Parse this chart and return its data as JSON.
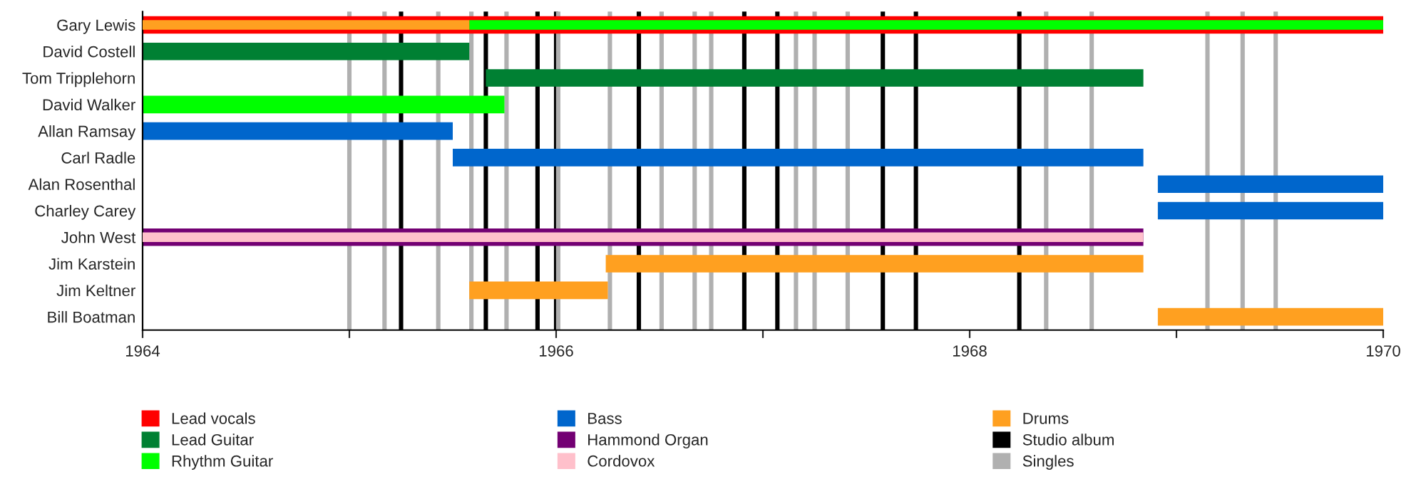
{
  "chart_data": {
    "type": "bar",
    "orientation": "horizontal",
    "legend": "bottom",
    "categories": [
      "Gary Lewis",
      "David Costell",
      "Tom Tripplehorn",
      "David Walker",
      "Allan Ramsay",
      "Carl Radle",
      "Alan Rosenthal",
      "Charley Carey",
      "John West",
      "Jim Karstein",
      "Jim Keltner",
      "Bill Boatman"
    ],
    "xlim": [
      1964,
      1970
    ],
    "xticks": [
      1964,
      {
        "value": 1965,
        "label": null
      },
      1966,
      {
        "value": 1967,
        "label": null
      },
      1968,
      {
        "value": 1969,
        "label": null
      },
      1970
    ],
    "series": [
      {
        "name": "Lead vocals",
        "color": "#ff0000",
        "base": [
          1964,
          null,
          null,
          null,
          null,
          null,
          null,
          null,
          null,
          null,
          null,
          null
        ],
        "values": [
          6,
          null,
          null,
          null,
          null,
          null,
          null,
          null,
          null,
          null,
          null,
          null
        ]
      },
      {
        "name": "Lead Guitar",
        "color": "#008033",
        "base": [
          null,
          1964,
          1965.66,
          null,
          null,
          null,
          null,
          null,
          null,
          null,
          null,
          null
        ],
        "values": [
          null,
          1.58,
          3.18,
          null,
          null,
          null,
          null,
          null,
          null,
          null,
          null,
          null
        ]
      },
      {
        "name": "Rhythm Guitar",
        "color": "#00ff00",
        "base": [
          1965.58,
          null,
          null,
          1964,
          null,
          null,
          null,
          null,
          null,
          null,
          null,
          null
        ],
        "values": [
          4.42,
          null,
          null,
          1.75,
          null,
          null,
          null,
          null,
          null,
          null,
          null,
          null
        ]
      },
      {
        "name": "Bass",
        "color": "#0066cc",
        "base": [
          null,
          null,
          null,
          null,
          1964,
          1965.5,
          1968.91,
          1968.91,
          null,
          null,
          null,
          null
        ],
        "values": [
          null,
          null,
          null,
          null,
          1.5,
          3.34,
          1.09,
          1.09,
          null,
          null,
          null,
          null
        ]
      },
      {
        "name": "Hammond Organ",
        "color": "#730073",
        "base": [
          null,
          null,
          null,
          null,
          null,
          null,
          null,
          null,
          1964,
          null,
          null,
          null
        ],
        "values": [
          null,
          null,
          null,
          null,
          null,
          null,
          null,
          null,
          4.84,
          null,
          null,
          null
        ]
      },
      {
        "name": "Cordovox",
        "color": "#ffc0cb",
        "base": [
          null,
          null,
          null,
          null,
          null,
          null,
          null,
          null,
          1964,
          null,
          null,
          null
        ],
        "values": [
          null,
          null,
          null,
          null,
          null,
          null,
          null,
          null,
          4.84,
          null,
          null,
          null
        ]
      },
      {
        "name": "Drums",
        "color": "#ffa020",
        "base": [
          1964,
          null,
          null,
          null,
          null,
          null,
          null,
          null,
          null,
          1966.24,
          1965.58,
          1968.91
        ],
        "values": [
          1.58,
          null,
          null,
          null,
          null,
          null,
          null,
          null,
          null,
          2.6,
          0.67,
          1.09
        ]
      }
    ],
    "ref_lines": [
      {
        "axis": "x",
        "value": 1965.25,
        "color": "#000000",
        "label": "Studio album"
      },
      {
        "axis": "x",
        "value": 1965.66,
        "color": "#000000"
      },
      {
        "axis": "x",
        "value": 1965.91,
        "color": "#000000"
      },
      {
        "axis": "x",
        "value": 1966.0,
        "color": "#000000"
      },
      {
        "axis": "x",
        "value": 1966.4,
        "color": "#000000"
      },
      {
        "axis": "x",
        "value": 1966.91,
        "color": "#000000"
      },
      {
        "axis": "x",
        "value": 1967.07,
        "color": "#000000"
      },
      {
        "axis": "x",
        "value": 1967.58,
        "color": "#000000"
      },
      {
        "axis": "x",
        "value": 1967.74,
        "color": "#000000"
      },
      {
        "axis": "x",
        "value": 1968.24,
        "color": "#000000"
      },
      {
        "axis": "x",
        "value": 1965.0,
        "color": "#b0b0b0",
        "label": "Singles"
      },
      {
        "axis": "x",
        "value": 1965.17,
        "color": "#b0b0b0"
      },
      {
        "axis": "x",
        "value": 1965.43,
        "color": "#b0b0b0"
      },
      {
        "axis": "x",
        "value": 1965.59,
        "color": "#b0b0b0"
      },
      {
        "axis": "x",
        "value": 1965.76,
        "color": "#b0b0b0"
      },
      {
        "axis": "x",
        "value": 1966.01,
        "color": "#b0b0b0"
      },
      {
        "axis": "x",
        "value": 1966.26,
        "color": "#b0b0b0"
      },
      {
        "axis": "x",
        "value": 1966.51,
        "color": "#b0b0b0"
      },
      {
        "axis": "x",
        "value": 1966.67,
        "color": "#b0b0b0"
      },
      {
        "axis": "x",
        "value": 1966.75,
        "color": "#b0b0b0"
      },
      {
        "axis": "x",
        "value": 1967.16,
        "color": "#b0b0b0"
      },
      {
        "axis": "x",
        "value": 1967.25,
        "color": "#b0b0b0"
      },
      {
        "axis": "x",
        "value": 1967.41,
        "color": "#b0b0b0"
      },
      {
        "axis": "x",
        "value": 1968.37,
        "color": "#b0b0b0"
      },
      {
        "axis": "x",
        "value": 1968.59,
        "color": "#b0b0b0"
      },
      {
        "axis": "x",
        "value": 1969.15,
        "color": "#b0b0b0"
      },
      {
        "axis": "x",
        "value": 1969.32,
        "color": "#b0b0b0"
      },
      {
        "axis": "x",
        "value": 1969.48,
        "color": "#b0b0b0"
      }
    ]
  }
}
